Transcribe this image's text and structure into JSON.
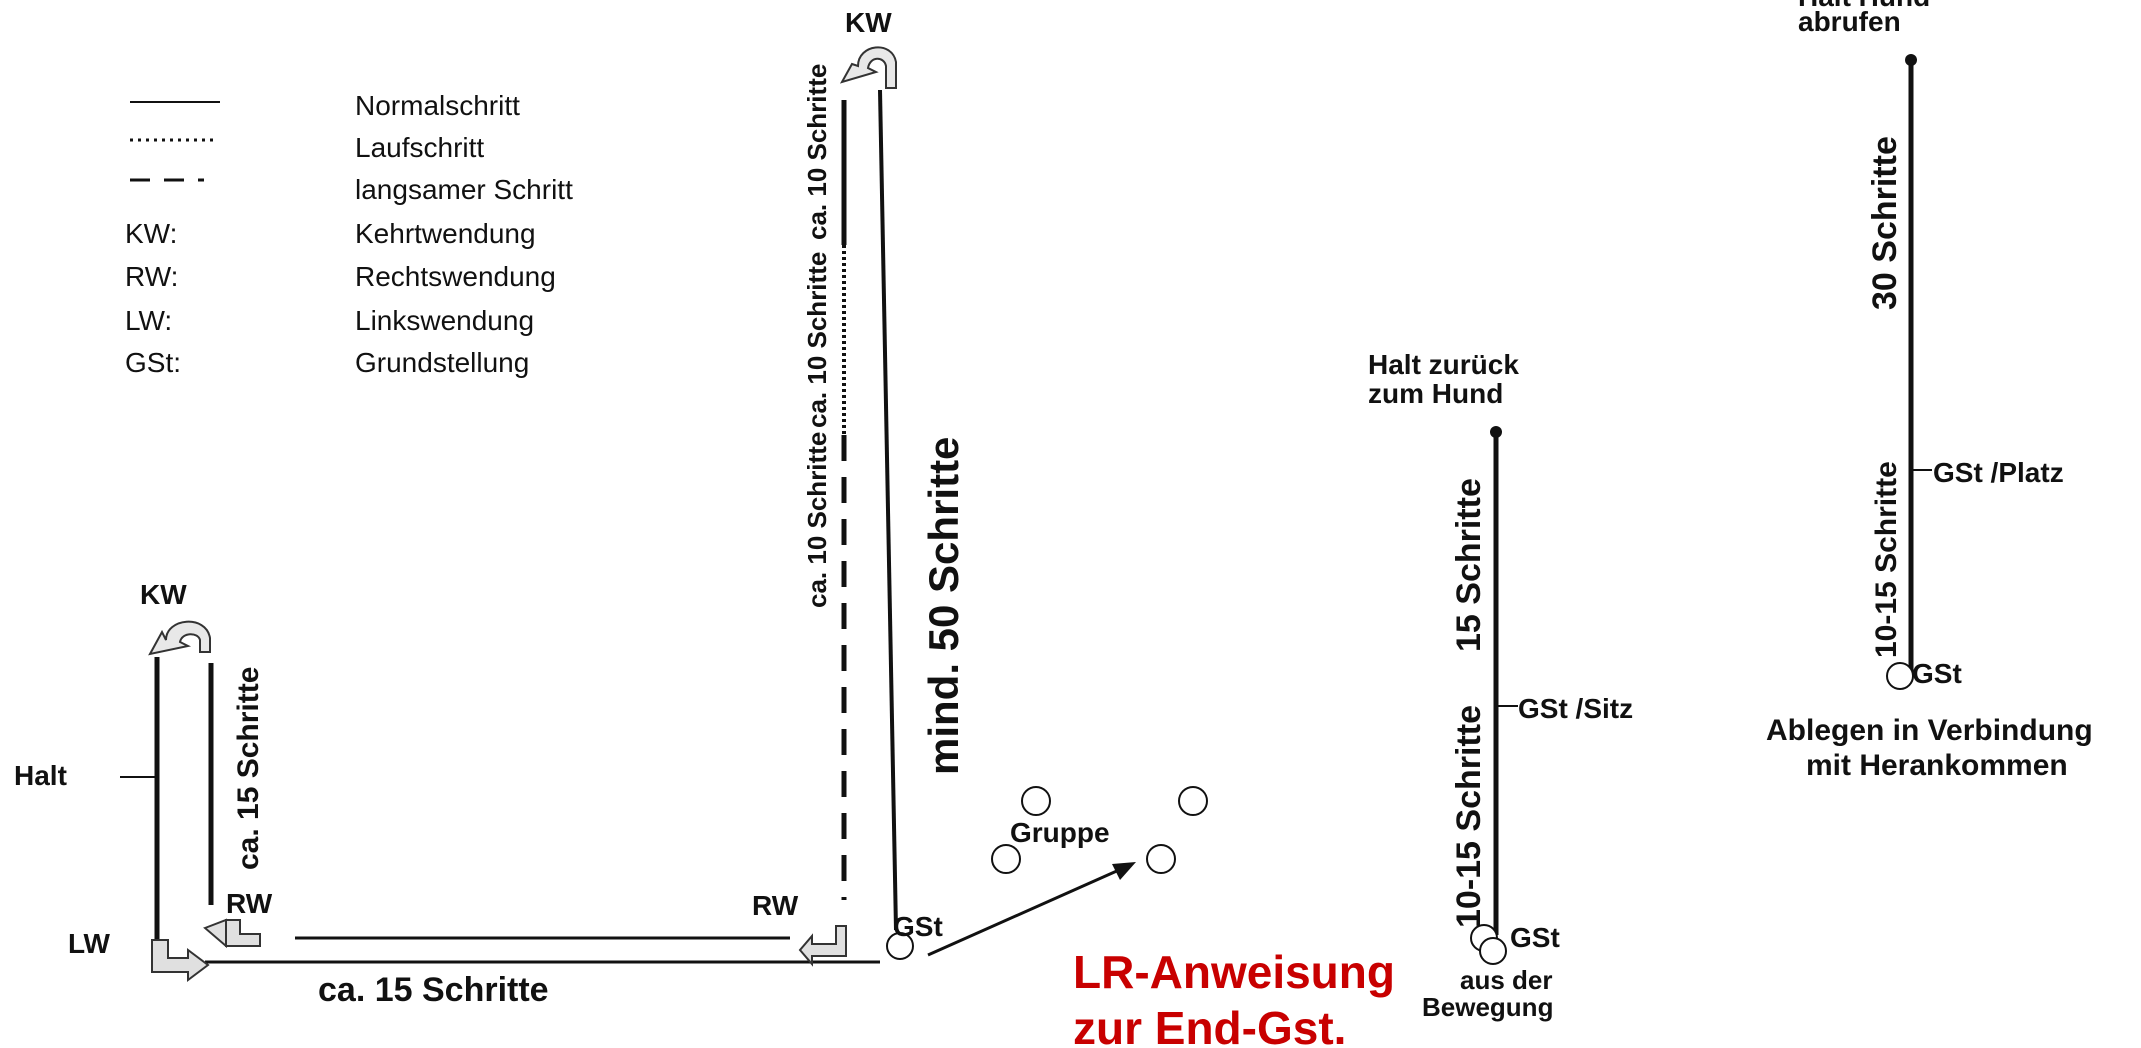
{
  "legend": {
    "normal": "Normalschritt",
    "lauf": "Laufschritt",
    "langsam": "langsamer Schritt",
    "kw_key": "KW:",
    "kw_val": "Kehrtwendung",
    "rw_key": "RW:",
    "rw_val": "Rechtswendung",
    "lw_key": "LW:",
    "lw_val": "Linkswendung",
    "gst_key": "GSt:",
    "gst_val": "Grundstellung"
  },
  "course": {
    "kw_top": "KW",
    "kw_left": "KW",
    "halt": "Halt",
    "lw": "LW",
    "rw_left": "RW",
    "rw_mid": "RW",
    "gst": "GSt",
    "gruppe": "Gruppe",
    "ca15_left": "ca. 15 Schritte",
    "ca15_bottom": "ca.  15 Schritte",
    "mind50": "mind. 50 Schritte",
    "ca10_a": "ca. 10 Schritte",
    "ca10_b": "ca. 10 Schritte",
    "ca10_c": "ca. 10 Schritte"
  },
  "sitz": {
    "top1": "Halt zurück",
    "top2": "zum Hund",
    "s15": "15 Schritte",
    "s1015": "10-15 Schritte",
    "gst_sitz": "GSt /Sitz",
    "gst": "GSt",
    "bottom1": "aus der",
    "bottom2": "Bewegung"
  },
  "platz": {
    "top1": "Halt Hund",
    "top2": "abrufen",
    "s30": "30 Schritte",
    "s1015": "10-15 Schritte",
    "gst_platz": "GSt /Platz",
    "gst": "GSt",
    "cap1": "Ablegen in Verbindung",
    "cap2": "mit Herankommen"
  },
  "note": {
    "line1": "LR-Anweisung",
    "line2": "zur End-Gst."
  }
}
